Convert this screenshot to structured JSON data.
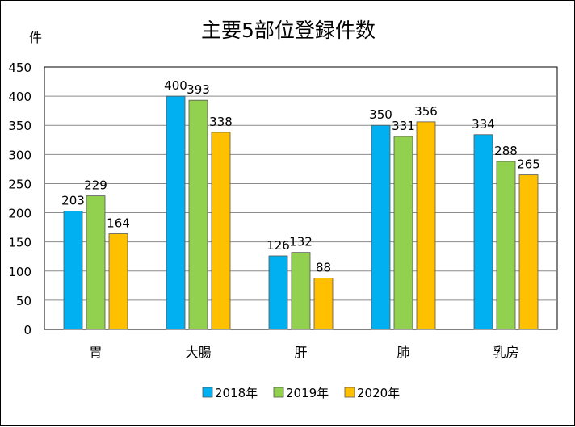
{
  "chart_data": {
    "type": "bar",
    "title": "主要5部位登録件数",
    "ylabel": "件",
    "xlabel": "",
    "categories": [
      "胃",
      "大腸",
      "肝",
      "肺",
      "乳房"
    ],
    "series": [
      {
        "name": "2018年",
        "values": [
          203,
          400,
          126,
          350,
          334
        ],
        "color": "#00B0F0"
      },
      {
        "name": "2019年",
        "values": [
          229,
          393,
          132,
          331,
          288
        ],
        "color": "#92D050"
      },
      {
        "name": "2020年",
        "values": [
          164,
          338,
          88,
          356,
          265
        ],
        "color": "#FFC000"
      }
    ],
    "ylim": [
      0,
      450
    ],
    "yticks": [
      0,
      50,
      100,
      150,
      200,
      250,
      300,
      350,
      400,
      450
    ],
    "grid": true,
    "legend_position": "bottom",
    "data_labels": true
  }
}
